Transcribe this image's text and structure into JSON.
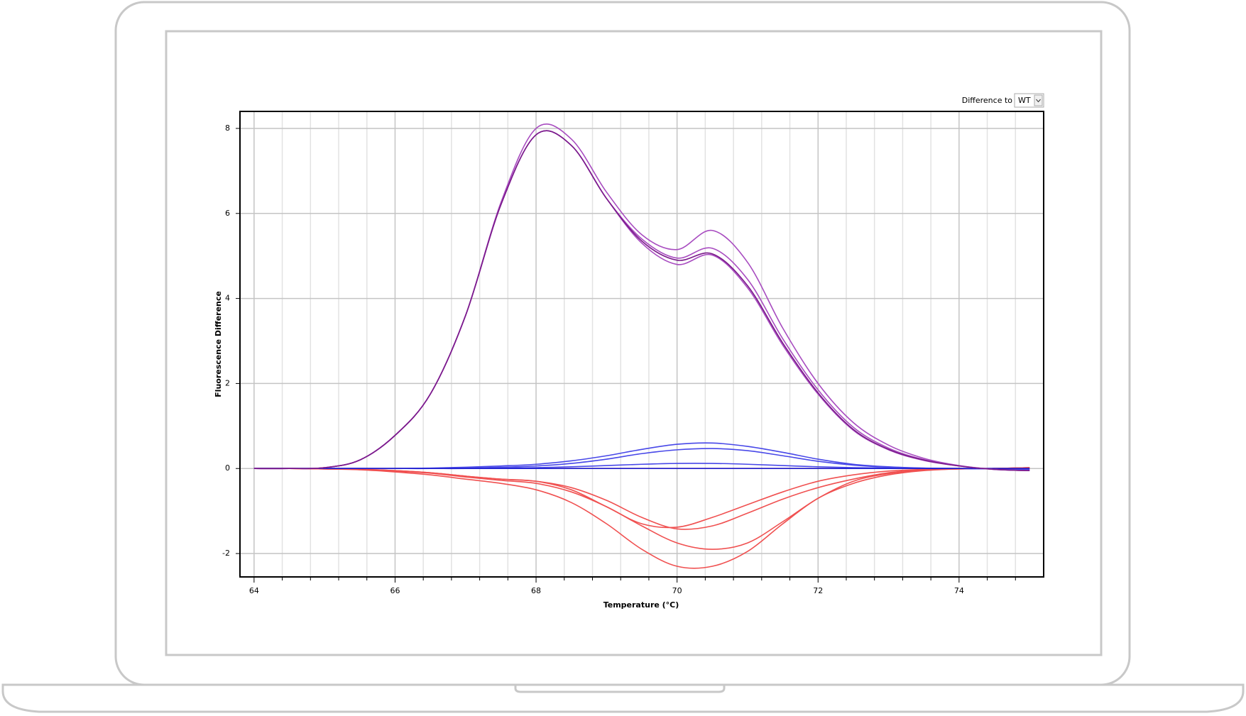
{
  "chart_data": {
    "type": "line",
    "control_label": "Difference to",
    "control_value": "WT",
    "xlabel": "Temperature (°C)",
    "ylabel": "Fluorescence Difference",
    "xlim": [
      63.8,
      75.2
    ],
    "ylim": [
      -2.55,
      8.4
    ],
    "xticks": [
      64,
      66,
      68,
      70,
      72,
      74
    ],
    "xminorticks": [
      64.4,
      64.8,
      65.2,
      65.6,
      66.4,
      66.8,
      67.2,
      67.6,
      68.4,
      68.8,
      69.2,
      69.6,
      70.4,
      70.8,
      71.2,
      71.6,
      72.4,
      72.8,
      73.2,
      73.6,
      74.4,
      74.8
    ],
    "yticks": [
      -2,
      0,
      2,
      4,
      6,
      8
    ],
    "grid": true,
    "x": [
      64,
      64.5,
      65,
      65.5,
      66,
      66.5,
      67,
      67.5,
      68,
      68.5,
      69,
      69.5,
      70,
      70.5,
      71,
      71.5,
      72,
      72.5,
      73,
      73.5,
      74,
      74.5,
      75
    ],
    "series": [
      {
        "color": "#f05050",
        "values": [
          0,
          0,
          -0.01,
          -0.03,
          -0.08,
          -0.15,
          -0.25,
          -0.35,
          -0.5,
          -0.8,
          -1.3,
          -1.9,
          -2.3,
          -2.3,
          -1.95,
          -1.3,
          -0.7,
          -0.35,
          -0.15,
          -0.05,
          -0.01,
          0,
          0.02
        ]
      },
      {
        "color": "#f05050",
        "values": [
          0,
          0,
          -0.01,
          -0.02,
          -0.06,
          -0.11,
          -0.2,
          -0.28,
          -0.35,
          -0.55,
          -0.9,
          -1.35,
          -1.75,
          -1.9,
          -1.75,
          -1.25,
          -0.7,
          -0.3,
          -0.12,
          -0.04,
          -0.01,
          0,
          0.02
        ]
      },
      {
        "color": "#f05050",
        "values": [
          0,
          0,
          -0.01,
          -0.02,
          -0.05,
          -0.1,
          -0.18,
          -0.25,
          -0.3,
          -0.45,
          -0.75,
          -1.15,
          -1.42,
          -1.35,
          -1.05,
          -0.72,
          -0.45,
          -0.25,
          -0.1,
          -0.03,
          -0.01,
          0,
          0.02
        ]
      },
      {
        "color": "#f05050",
        "values": [
          0,
          0,
          -0.01,
          -0.02,
          -0.05,
          -0.1,
          -0.18,
          -0.25,
          -0.3,
          -0.5,
          -0.9,
          -1.3,
          -1.38,
          -1.15,
          -0.85,
          -0.55,
          -0.3,
          -0.15,
          -0.06,
          -0.02,
          0,
          0,
          0.02
        ]
      },
      {
        "color": "#c01818",
        "values": [
          0,
          0,
          0,
          0,
          0,
          0,
          0,
          0,
          0,
          0,
          0,
          0,
          0,
          0,
          0,
          0,
          0,
          0,
          0,
          0,
          0,
          0,
          0
        ]
      },
      {
        "color": "#4848e8",
        "values": [
          0,
          0,
          0,
          0,
          0,
          0.01,
          0.03,
          0.06,
          0.1,
          0.18,
          0.3,
          0.45,
          0.57,
          0.6,
          0.52,
          0.38,
          0.22,
          0.1,
          0.04,
          0.01,
          0,
          -0.01,
          -0.03
        ]
      },
      {
        "color": "#4848e8",
        "values": [
          0,
          0,
          0,
          0,
          0,
          0,
          0.01,
          0.03,
          0.06,
          0.12,
          0.22,
          0.35,
          0.44,
          0.47,
          0.42,
          0.3,
          0.17,
          0.08,
          0.03,
          0.01,
          0,
          -0.01,
          -0.03
        ]
      },
      {
        "color": "#4848e8",
        "values": [
          0,
          0,
          0,
          0,
          0,
          0,
          0,
          0.01,
          0.02,
          0.04,
          0.07,
          0.1,
          0.12,
          0.12,
          0.1,
          0.07,
          0.04,
          0.02,
          0.01,
          0,
          0,
          0,
          -0.01
        ]
      },
      {
        "color": "#2020d0",
        "values": [
          0,
          0,
          0,
          0,
          0,
          0,
          0,
          0,
          0,
          0,
          0,
          0,
          0,
          0,
          0,
          0,
          0,
          0,
          0,
          0,
          0,
          0,
          0
        ]
      },
      {
        "color": "#a84cc0",
        "values": [
          0,
          0,
          0.02,
          0.2,
          0.78,
          1.75,
          3.6,
          6.25,
          8.0,
          7.75,
          6.5,
          5.5,
          5.15,
          5.6,
          4.85,
          3.3,
          2.0,
          1.08,
          0.55,
          0.24,
          0.07,
          -0.02,
          -0.05
        ]
      },
      {
        "color": "#a84cc0",
        "values": [
          0,
          0,
          0.02,
          0.2,
          0.78,
          1.75,
          3.6,
          6.2,
          7.85,
          7.6,
          6.35,
          5.4,
          4.95,
          5.18,
          4.45,
          3.05,
          1.85,
          0.97,
          0.48,
          0.21,
          0.06,
          -0.02,
          -0.05
        ]
      },
      {
        "color": "#a84cc0",
        "values": [
          0,
          0,
          0.02,
          0.2,
          0.78,
          1.75,
          3.6,
          6.2,
          7.85,
          7.6,
          6.35,
          5.3,
          4.8,
          5.02,
          4.25,
          2.9,
          1.75,
          0.9,
          0.44,
          0.19,
          0.06,
          -0.02,
          -0.05
        ]
      },
      {
        "color": "#7a1a8a",
        "values": [
          0,
          0,
          0.02,
          0.2,
          0.78,
          1.75,
          3.6,
          6.2,
          7.85,
          7.6,
          6.35,
          5.35,
          4.9,
          5.05,
          4.3,
          2.95,
          1.78,
          0.92,
          0.45,
          0.2,
          0.06,
          -0.02,
          -0.05
        ]
      }
    ]
  }
}
